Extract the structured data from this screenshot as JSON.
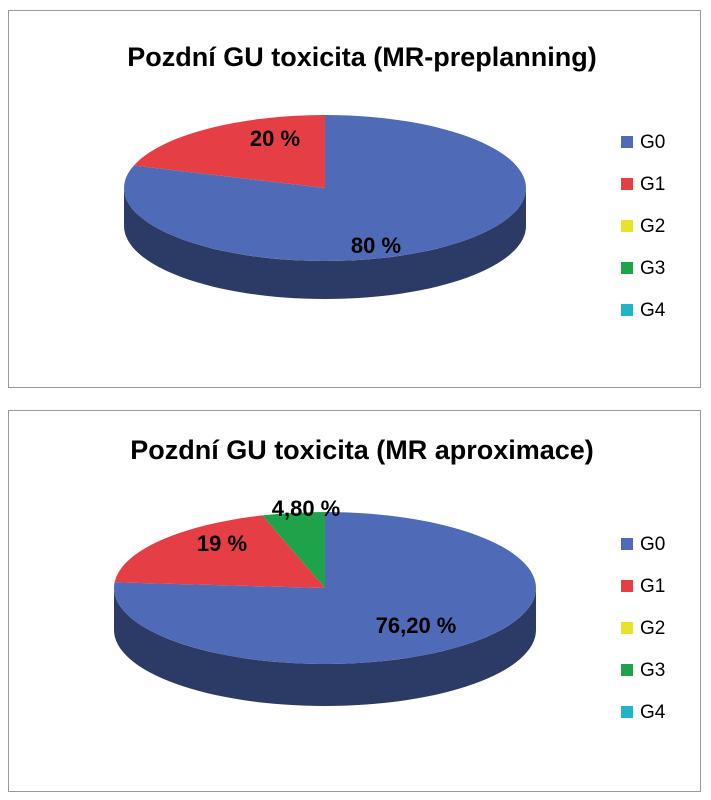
{
  "chart_data": [
    {
      "type": "pie",
      "title": "Pozdní GU toxicita (MR-preplanning)",
      "categories": [
        "G0",
        "G1",
        "G2",
        "G3",
        "G4"
      ],
      "values": [
        80,
        20,
        0,
        0,
        0
      ],
      "labels": [
        "80 %",
        "20 %",
        "",
        "",
        ""
      ],
      "colors": [
        "#4f6bb7",
        "#e53e45",
        "#e8e32a",
        "#1ea34a",
        "#1fb5c6"
      ],
      "legend_position": "right",
      "style": "3d"
    },
    {
      "type": "pie",
      "title": "Pozdní GU toxicita (MR aproximace)",
      "categories": [
        "G0",
        "G1",
        "G2",
        "G3",
        "G4"
      ],
      "values": [
        76.2,
        19,
        0,
        4.8,
        0
      ],
      "labels": [
        "76,20 %",
        "19 %",
        "",
        "4,80 %",
        ""
      ],
      "colors": [
        "#4f6bb7",
        "#e53e45",
        "#e8e32a",
        "#1ea34a",
        "#1fb5c6"
      ],
      "legend_position": "right",
      "style": "3d"
    }
  ]
}
